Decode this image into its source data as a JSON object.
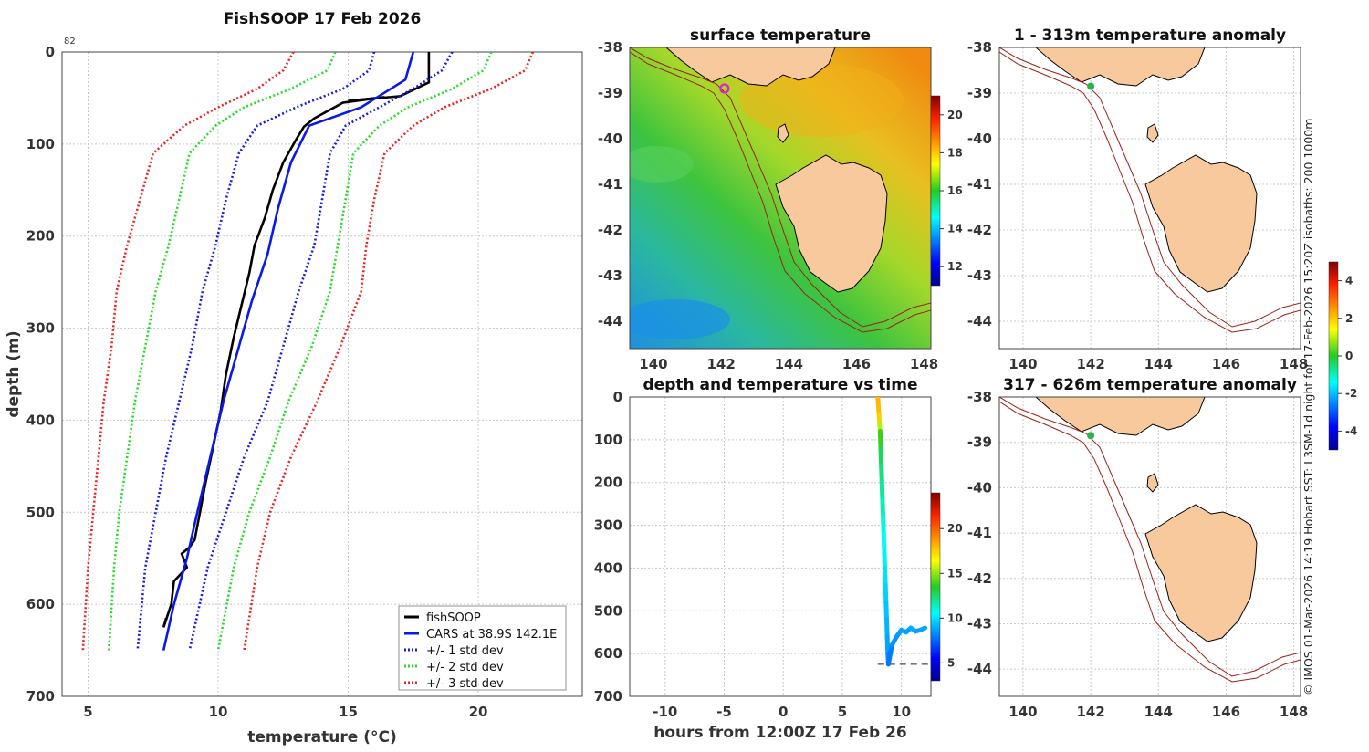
{
  "chart_data": [
    {
      "type": "line",
      "title": "FishSOOP 17 Feb 2026",
      "xlabel": "temperature (°C)",
      "ylabel": "depth (m)",
      "xlim": [
        4,
        24
      ],
      "ylim": [
        700,
        0
      ],
      "xticks": [
        5,
        10,
        15,
        20
      ],
      "yticks": [
        0,
        100,
        200,
        300,
        400,
        500,
        600,
        700
      ],
      "corner_note": "82",
      "legend_position": "bottom-right",
      "series": [
        {
          "name": "fishSOOP",
          "color": "#000000",
          "style": "solid",
          "points": [
            [
              18.1,
              0
            ],
            [
              18.1,
              33
            ],
            [
              17.0,
              48
            ],
            [
              15.0,
              53
            ],
            [
              16.4,
              49
            ],
            [
              14.8,
              55
            ],
            [
              13.7,
              72
            ],
            [
              13.3,
              81
            ],
            [
              13.0,
              95
            ],
            [
              12.5,
              120
            ],
            [
              12.1,
              150
            ],
            [
              11.8,
              180
            ],
            [
              11.4,
              210
            ],
            [
              11.2,
              240
            ],
            [
              10.9,
              275
            ],
            [
              10.6,
              310
            ],
            [
              10.3,
              350
            ],
            [
              10.1,
              390
            ],
            [
              9.8,
              430
            ],
            [
              9.5,
              470
            ],
            [
              9.3,
              500
            ],
            [
              9.1,
              530
            ],
            [
              8.9,
              538
            ],
            [
              8.6,
              545
            ],
            [
              8.8,
              560
            ],
            [
              8.3,
              575
            ],
            [
              8.2,
              600
            ],
            [
              7.9,
              625
            ],
            [
              8.0,
              615
            ]
          ]
        },
        {
          "name": "CARS at 38.9S 142.1E",
          "color": "#0a18e8",
          "style": "solid",
          "points": [
            [
              17.5,
              0
            ],
            [
              17.2,
              30
            ],
            [
              15.5,
              60
            ],
            [
              13.5,
              80
            ],
            [
              12.8,
              120
            ],
            [
              12.3,
              170
            ],
            [
              11.9,
              220
            ],
            [
              11.3,
              270
            ],
            [
              10.8,
              320
            ],
            [
              10.2,
              380
            ],
            [
              9.7,
              440
            ],
            [
              9.2,
              500
            ],
            [
              8.8,
              550
            ],
            [
              8.3,
              600
            ],
            [
              7.9,
              650
            ]
          ]
        },
        {
          "name": "+/- 1 std dev",
          "color": "#1a1ae8",
          "style": "dotted",
          "points_lo": [
            [
              16.0,
              0
            ],
            [
              15.8,
              20
            ],
            [
              14.8,
              40
            ],
            [
              13.0,
              60
            ],
            [
              11.5,
              80
            ],
            [
              10.8,
              110
            ],
            [
              10.3,
              160
            ],
            [
              9.9,
              210
            ],
            [
              9.4,
              260
            ],
            [
              9.0,
              320
            ],
            [
              8.5,
              380
            ],
            [
              8.0,
              440
            ],
            [
              7.6,
              500
            ],
            [
              7.2,
              560
            ],
            [
              6.9,
              650
            ]
          ],
          "points_hi": [
            [
              19.0,
              0
            ],
            [
              18.6,
              20
            ],
            [
              17.5,
              40
            ],
            [
              16.2,
              60
            ],
            [
              14.9,
              80
            ],
            [
              14.3,
              110
            ],
            [
              14.0,
              160
            ],
            [
              13.7,
              210
            ],
            [
              13.1,
              260
            ],
            [
              12.5,
              320
            ],
            [
              11.9,
              380
            ],
            [
              11.0,
              440
            ],
            [
              10.3,
              500
            ],
            [
              9.6,
              560
            ],
            [
              8.9,
              650
            ]
          ]
        },
        {
          "name": "+/- 2 std dev",
          "color": "#22dd22",
          "style": "dotted",
          "points_lo": [
            [
              14.5,
              0
            ],
            [
              14.2,
              20
            ],
            [
              12.8,
              40
            ],
            [
              11.0,
              60
            ],
            [
              9.9,
              80
            ],
            [
              8.9,
              110
            ],
            [
              8.5,
              160
            ],
            [
              8.1,
              210
            ],
            [
              7.6,
              260
            ],
            [
              7.2,
              320
            ],
            [
              6.8,
              380
            ],
            [
              6.5,
              440
            ],
            [
              6.2,
              500
            ],
            [
              6.0,
              560
            ],
            [
              5.8,
              650
            ]
          ],
          "points_hi": [
            [
              20.5,
              0
            ],
            [
              20.2,
              20
            ],
            [
              19.0,
              40
            ],
            [
              17.3,
              60
            ],
            [
              16.2,
              80
            ],
            [
              15.2,
              110
            ],
            [
              14.9,
              160
            ],
            [
              14.6,
              210
            ],
            [
              14.3,
              260
            ],
            [
              13.6,
              320
            ],
            [
              12.7,
              380
            ],
            [
              12.0,
              440
            ],
            [
              11.2,
              500
            ],
            [
              10.6,
              560
            ],
            [
              10.0,
              650
            ]
          ]
        },
        {
          "name": "+/- 3 std dev",
          "color": "#ee2222",
          "style": "dotted",
          "points_lo": [
            [
              12.9,
              0
            ],
            [
              12.5,
              20
            ],
            [
              11.5,
              40
            ],
            [
              10.0,
              60
            ],
            [
              8.7,
              80
            ],
            [
              7.5,
              110
            ],
            [
              7.0,
              160
            ],
            [
              6.5,
              210
            ],
            [
              6.1,
              260
            ],
            [
              5.9,
              320
            ],
            [
              5.6,
              380
            ],
            [
              5.4,
              440
            ],
            [
              5.2,
              500
            ],
            [
              5.0,
              560
            ],
            [
              4.8,
              650
            ]
          ],
          "points_hi": [
            [
              22.1,
              0
            ],
            [
              21.8,
              20
            ],
            [
              20.5,
              40
            ],
            [
              18.7,
              60
            ],
            [
              17.5,
              80
            ],
            [
              16.4,
              110
            ],
            [
              16.0,
              160
            ],
            [
              15.7,
              210
            ],
            [
              15.5,
              260
            ],
            [
              14.7,
              320
            ],
            [
              13.8,
              380
            ],
            [
              12.8,
              440
            ],
            [
              12.0,
              500
            ],
            [
              11.5,
              560
            ],
            [
              11.0,
              650
            ]
          ]
        }
      ]
    },
    {
      "type": "heatmap",
      "title": "surface temperature",
      "xticks": [
        140,
        142,
        144,
        146,
        148
      ],
      "yticks": [
        -38,
        -39,
        -40,
        -41,
        -42,
        -43,
        -44
      ],
      "xlim": [
        139.3,
        148.2
      ],
      "ylim": [
        -44.6,
        -38
      ],
      "colorbar_ticks": [
        12,
        14,
        16,
        18,
        20
      ],
      "colorbar_range": [
        11,
        21
      ],
      "marker": {
        "lon": 142.1,
        "lat": -38.9
      }
    },
    {
      "type": "scatter",
      "title": "depth and temperature vs time",
      "xlabel": "hours from 12:00Z 17 Feb 26",
      "xticks": [
        -10,
        -5,
        0,
        5,
        10
      ],
      "yticks": [
        0,
        100,
        200,
        300,
        400,
        500,
        600,
        700
      ],
      "xlim": [
        -13,
        12.5
      ],
      "ylim": [
        700,
        0
      ],
      "colorbar_ticks": [
        5,
        10,
        15,
        20
      ],
      "colorbar_range": [
        3,
        24
      ],
      "bottom_line_depth": 625,
      "points": [
        [
          8.0,
          0,
          18.1
        ],
        [
          8.05,
          20,
          18.0
        ],
        [
          8.1,
          40,
          17.5
        ],
        [
          8.15,
          60,
          15.5
        ],
        [
          8.2,
          80,
          13.8
        ],
        [
          8.25,
          120,
          12.8
        ],
        [
          8.3,
          160,
          12.3
        ],
        [
          8.35,
          200,
          11.9
        ],
        [
          8.4,
          240,
          11.5
        ],
        [
          8.45,
          280,
          11.0
        ],
        [
          8.5,
          320,
          10.6
        ],
        [
          8.55,
          360,
          10.3
        ],
        [
          8.6,
          400,
          10.0
        ],
        [
          8.65,
          440,
          9.7
        ],
        [
          8.7,
          480,
          9.4
        ],
        [
          8.75,
          520,
          9.1
        ],
        [
          8.8,
          560,
          8.8
        ],
        [
          8.85,
          600,
          8.2
        ],
        [
          8.9,
          625,
          7.9
        ],
        [
          9.2,
          580,
          8.4
        ],
        [
          9.6,
          560,
          8.6
        ],
        [
          10.0,
          545,
          8.8
        ],
        [
          10.4,
          550,
          8.7
        ],
        [
          10.8,
          540,
          8.9
        ],
        [
          11.2,
          548,
          8.8
        ],
        [
          11.6,
          545,
          8.8
        ],
        [
          12.0,
          540,
          8.9
        ]
      ]
    },
    {
      "type": "heatmap",
      "title": "1 - 313m temperature anomaly",
      "xticks": [
        140,
        142,
        144,
        146,
        148
      ],
      "yticks": [
        -38,
        -39,
        -40,
        -41,
        -42,
        -43,
        -44
      ],
      "xlim": [
        139.3,
        148.2
      ],
      "ylim": [
        -44.6,
        -38
      ],
      "colorbar_ticks": [
        -4,
        -2,
        0,
        2,
        4
      ],
      "colorbar_range": [
        -5,
        5
      ],
      "marker": {
        "lon": 142.0,
        "lat": -38.85
      }
    },
    {
      "type": "heatmap",
      "title": "317 - 626m temperature anomaly",
      "xticks": [
        140,
        142,
        144,
        146,
        148
      ],
      "yticks": [
        -38,
        -39,
        -40,
        -41,
        -42,
        -43,
        -44
      ],
      "xlim": [
        139.3,
        148.2
      ],
      "ylim": [
        -44.6,
        -38
      ],
      "marker": {
        "lon": 142.0,
        "lat": -38.85
      }
    }
  ],
  "sidebar_note": "© IMOS 01-Mar-2026 14:19 Hobart SST: L3SM-1d night for 17-Feb-2026 15:20Z isobaths: 200  1000m",
  "colors": {
    "land": "#f8c99c",
    "isobath": "#9b2218",
    "marker_ring": "#e020d0",
    "marker_dot": "#2ab34a"
  }
}
